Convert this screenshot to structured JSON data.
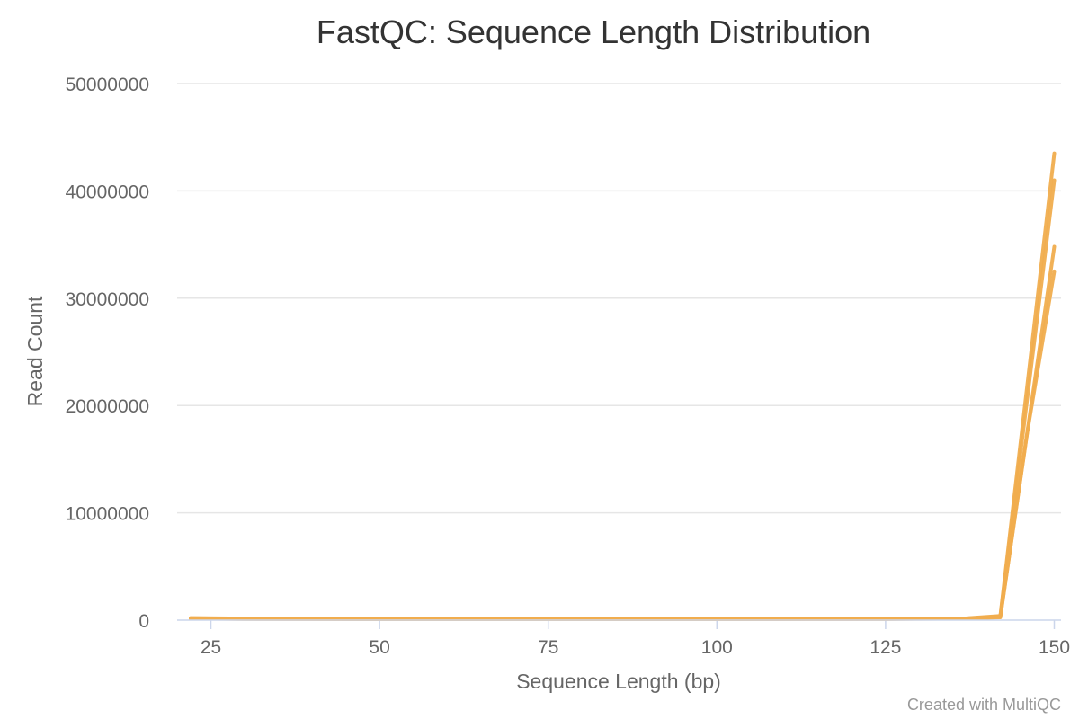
{
  "chart_data": {
    "type": "line",
    "title": "FastQC: Sequence Length Distribution",
    "xlabel": "Sequence Length (bp)",
    "ylabel": "Read Count",
    "credits": "Created with MultiQC",
    "xlim": [
      20,
      151
    ],
    "ylim": [
      0,
      50000000
    ],
    "x_ticks": [
      25,
      50,
      75,
      100,
      125,
      150
    ],
    "y_ticks": [
      0,
      10000000,
      20000000,
      30000000,
      40000000,
      50000000
    ],
    "grid": true,
    "legend": "none",
    "line_color": "#f0ad4e",
    "series": [
      {
        "x": [
          22,
          30,
          50,
          75,
          100,
          125,
          137,
          142,
          150
        ],
        "y": [
          200000,
          150000,
          110000,
          100000,
          110000,
          130000,
          180000,
          400000,
          43500000
        ]
      },
      {
        "x": [
          22,
          30,
          50,
          75,
          100,
          125,
          137,
          142,
          150
        ],
        "y": [
          180000,
          140000,
          100000,
          95000,
          100000,
          120000,
          160000,
          350000,
          41000000
        ]
      },
      {
        "x": [
          22,
          30,
          50,
          75,
          100,
          125,
          137,
          142,
          150
        ],
        "y": [
          150000,
          120000,
          90000,
          85000,
          90000,
          110000,
          140000,
          300000,
          34800000
        ]
      },
      {
        "x": [
          22,
          30,
          50,
          75,
          100,
          125,
          137,
          142,
          146,
          150
        ],
        "y": [
          140000,
          110000,
          85000,
          80000,
          85000,
          100000,
          130000,
          250000,
          17500000,
          32500000
        ]
      }
    ]
  }
}
